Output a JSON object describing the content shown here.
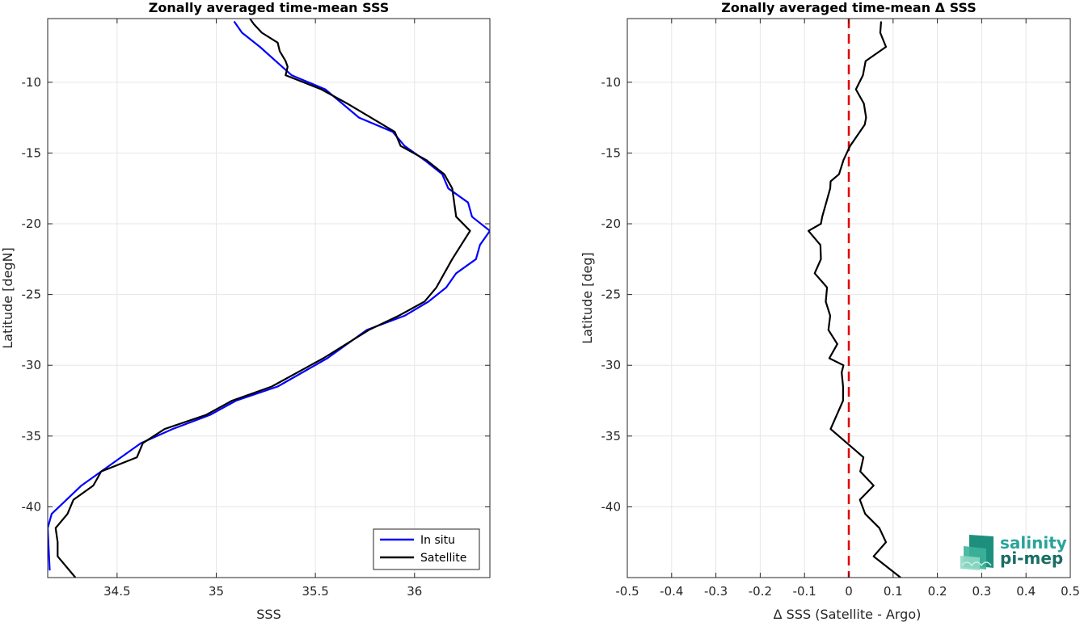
{
  "chart_data": [
    {
      "type": "line",
      "title": "Zonally averaged time-mean SSS",
      "xlabel": "SSS",
      "ylabel": "Latitude [degN]",
      "xlim": [
        34.15,
        36.38
      ],
      "ylim": [
        -45.0,
        -5.5
      ],
      "xticks": [
        34.5,
        35,
        35.5,
        36
      ],
      "xtick_labels": [
        "34.5",
        "35",
        "35.5",
        "36"
      ],
      "yticks": [
        -10,
        -15,
        -20,
        -25,
        -30,
        -35,
        -40
      ],
      "ytick_labels": [
        "-10",
        "-15",
        "-20",
        "-25",
        "-30",
        "-35",
        "-40"
      ],
      "grid": true,
      "legend_position": "bottom-right",
      "series": [
        {
          "name": "In situ",
          "color": "#0000ff",
          "x": [
            35.09,
            35.13,
            35.22,
            35.3,
            35.38,
            35.55,
            35.72,
            35.89,
            35.95,
            36.05,
            36.14,
            36.17,
            36.27,
            36.29,
            36.38,
            36.33,
            36.31,
            36.21,
            36.16,
            36.07,
            35.95,
            35.76,
            35.56,
            35.31,
            35.1,
            34.97,
            34.78,
            34.62,
            34.42,
            34.32,
            34.17,
            34.15,
            34.16
          ],
          "y": [
            -5.7,
            -6.5,
            -7.5,
            -8.5,
            -9.5,
            -10.5,
            -12.5,
            -13.5,
            -14.5,
            -15.5,
            -16.5,
            -17.5,
            -18.5,
            -19.5,
            -20.5,
            -21.5,
            -22.5,
            -23.5,
            -24.5,
            -25.5,
            -26.5,
            -27.5,
            -29.5,
            -31.5,
            -32.5,
            -33.5,
            -34.5,
            -35.5,
            -37.5,
            -38.5,
            -40.5,
            -41.5,
            -44.5
          ]
        },
        {
          "name": "Satellite",
          "color": "#000000",
          "x": [
            35.17,
            35.19,
            35.23,
            35.31,
            35.32,
            35.35,
            35.36,
            35.35,
            35.53,
            35.66,
            35.78,
            35.9,
            35.93,
            36.06,
            36.15,
            36.19,
            36.21,
            36.28,
            36.19,
            36.15,
            36.11,
            36.05,
            35.92,
            35.77,
            35.54,
            35.28,
            35.08,
            34.95,
            34.74,
            34.63,
            34.6,
            34.42,
            34.38,
            34.28,
            34.25,
            34.19,
            34.2,
            34.2,
            34.29
          ],
          "y": [
            -5.5,
            -5.9,
            -6.5,
            -7.2,
            -7.8,
            -8.5,
            -8.9,
            -9.5,
            -10.5,
            -11.5,
            -12.5,
            -13.5,
            -14.5,
            -15.5,
            -16.5,
            -17.5,
            -19.5,
            -20.5,
            -22.5,
            -23.5,
            -24.5,
            -25.5,
            -26.5,
            -27.5,
            -29.5,
            -31.5,
            -32.5,
            -33.5,
            -34.5,
            -35.5,
            -36.5,
            -37.5,
            -38.5,
            -39.5,
            -40.5,
            -41.5,
            -42.5,
            -43.5,
            -45.0
          ]
        }
      ]
    },
    {
      "type": "line",
      "title": "Zonally averaged time-mean Δ SSS",
      "xlabel": "Δ SSS (Satellite - Argo)",
      "ylabel": "Latitude [deg]",
      "xlim": [
        -0.5,
        0.5
      ],
      "ylim": [
        -45.0,
        -5.5
      ],
      "xticks": [
        -0.5,
        -0.4,
        -0.3,
        -0.2,
        -0.1,
        0,
        0.1,
        0.2,
        0.3,
        0.4,
        0.5
      ],
      "xtick_labels": [
        "-0.5",
        "-0.4",
        "-0.3",
        "-0.2",
        "-0.1",
        "0",
        "0.1",
        "0.2",
        "0.3",
        "0.4",
        "0.5"
      ],
      "yticks": [
        -10,
        -15,
        -20,
        -25,
        -30,
        -35,
        -40
      ],
      "ytick_labels": [
        "-10",
        "-15",
        "-20",
        "-25",
        "-30",
        "-35",
        "-40"
      ],
      "grid": true,
      "reference_line": {
        "x": 0,
        "color": "#e00000",
        "style": "dashed"
      },
      "series": [
        {
          "color": "#000000",
          "x": [
            0.073,
            0.071,
            0.084,
            0.038,
            0.032,
            0.016,
            0.034,
            0.039,
            0.036,
            0.003,
            -0.012,
            -0.022,
            -0.041,
            -0.042,
            -0.051,
            -0.06,
            -0.063,
            -0.091,
            -0.064,
            -0.063,
            -0.077,
            -0.049,
            -0.052,
            -0.042,
            -0.046,
            -0.026,
            -0.044,
            -0.012,
            -0.016,
            -0.013,
            -0.013,
            -0.041,
            0.033,
            0.026,
            0.056,
            0.025,
            0.037,
            0.069,
            0.084,
            0.056,
            0.117
          ],
          "y": [
            -5.7,
            -6.5,
            -7.5,
            -8.5,
            -9.5,
            -10.5,
            -11.5,
            -12.5,
            -13.0,
            -14.5,
            -15.5,
            -16.5,
            -17.0,
            -17.5,
            -18.5,
            -19.5,
            -20.0,
            -20.5,
            -21.5,
            -22.5,
            -23.5,
            -24.5,
            -25.5,
            -26.5,
            -27.5,
            -28.5,
            -29.5,
            -30.0,
            -30.5,
            -31.5,
            -32.5,
            -34.5,
            -36.5,
            -37.5,
            -38.5,
            -39.5,
            -40.5,
            -41.5,
            -42.5,
            -43.5,
            -45.0
          ]
        }
      ]
    }
  ],
  "logo": {
    "line1": "salinity",
    "line2": "pi-mep"
  }
}
